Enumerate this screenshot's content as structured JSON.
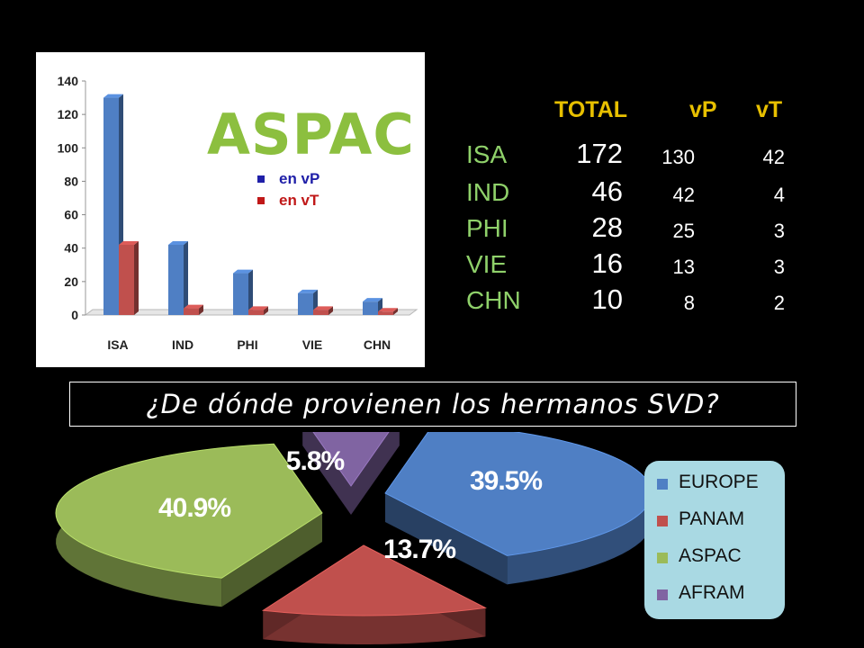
{
  "chart_data": [
    {
      "type": "bar",
      "title": "ASPAC",
      "categories": [
        "ISA",
        "IND",
        "PHI",
        "VIE",
        "CHN"
      ],
      "series": [
        {
          "name": "en vP",
          "values": [
            130,
            42,
            25,
            13,
            8
          ],
          "color": "#4f7fc4"
        },
        {
          "name": "en vT",
          "values": [
            42,
            4,
            3,
            3,
            2
          ],
          "color": "#c0504d"
        }
      ],
      "ylim": [
        0,
        140
      ],
      "yticks": [
        "0",
        "20",
        "40",
        "60",
        "80",
        "100",
        "120",
        "140"
      ],
      "grid": false,
      "legend": "inside upper-center",
      "title_color": "#8cbf3f"
    },
    {
      "type": "pie",
      "title": "¿De dónde provienen los hermanos SVD?",
      "labels": [
        "EUROPE",
        "PANAM",
        "ASPAC",
        "AFRAM"
      ],
      "values": [
        39.5,
        13.7,
        40.9,
        5.8
      ],
      "value_labels": [
        "39.5%",
        "13.7%",
        "40.9%",
        "5.8%"
      ],
      "colors": [
        "#4f7fc4",
        "#c0504d",
        "#9bbb59",
        "#8064a2"
      ],
      "legend": "right"
    }
  ],
  "table": {
    "headers": [
      "TOTAL",
      "vP",
      "vT"
    ],
    "rows": [
      {
        "label": "ISA",
        "total": "172",
        "vp": "130",
        "vt": "42"
      },
      {
        "label": "IND",
        "total": "46",
        "vp": "42",
        "vt": "4"
      },
      {
        "label": "PHI",
        "total": "28",
        "vp": "25",
        "vt": "3"
      },
      {
        "label": "VIE",
        "total": "16",
        "vp": "13",
        "vt": "3"
      },
      {
        "label": "CHN",
        "total": "10",
        "vp": "8",
        "vt": "2"
      }
    ]
  },
  "question": "¿De dónde provienen los hermanos SVD?"
}
